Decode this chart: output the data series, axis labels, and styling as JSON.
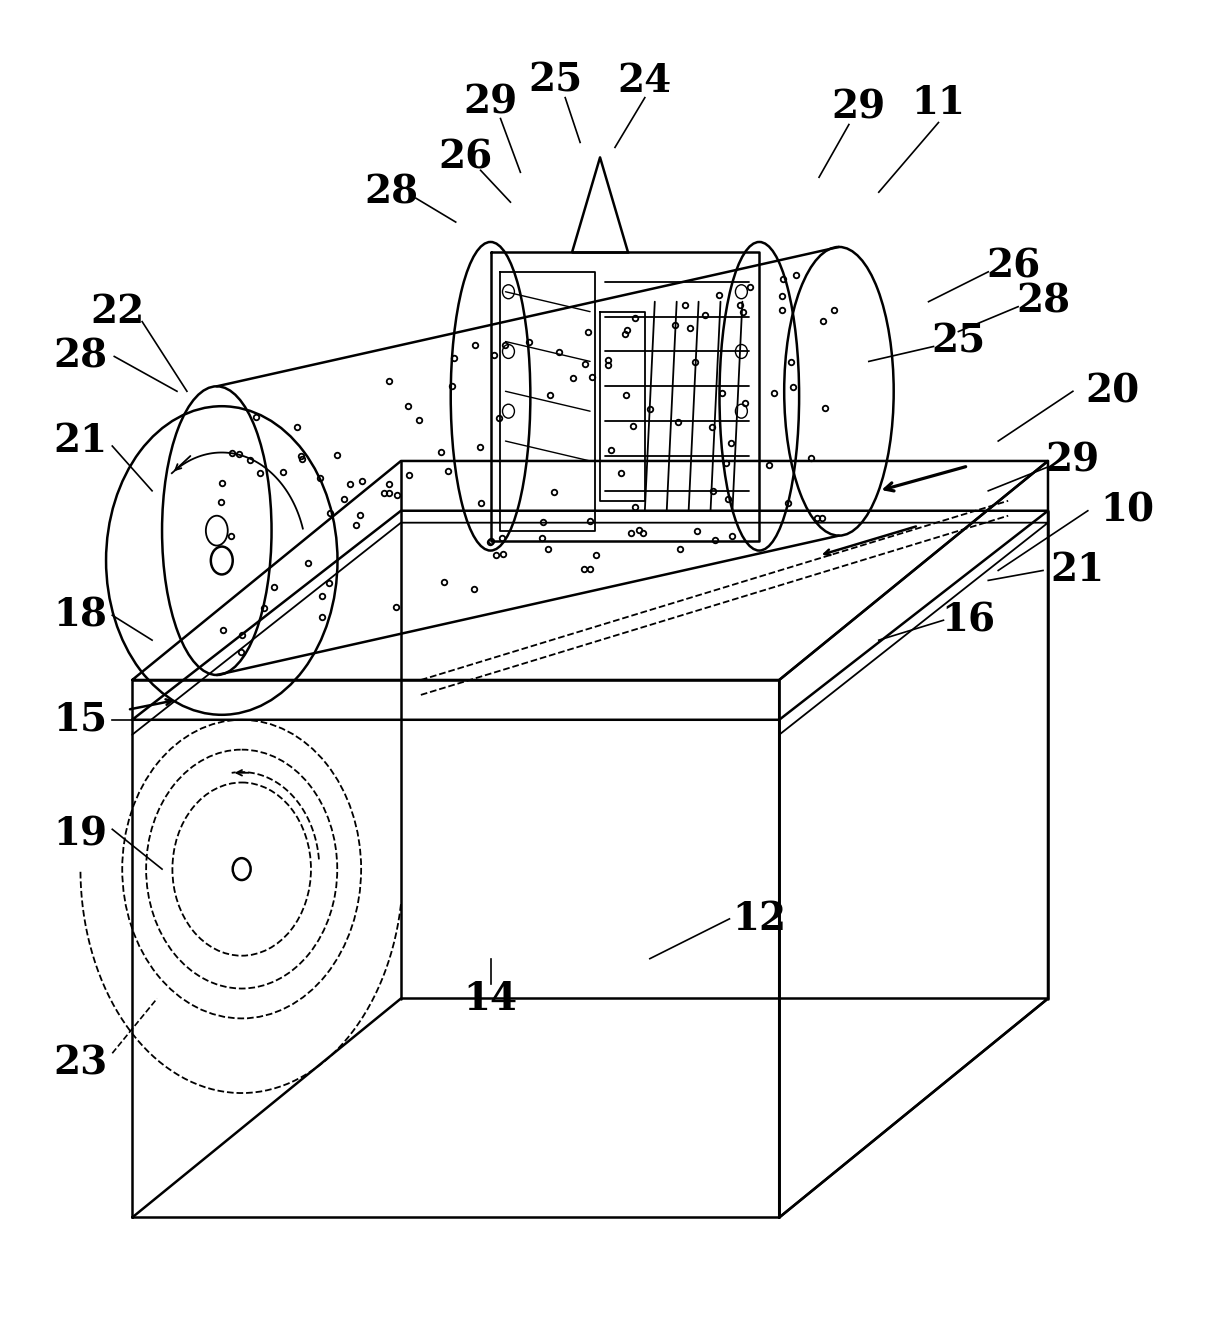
{
  "background_color": "#ffffff",
  "line_color": "#000000",
  "figure_width": 12.18,
  "figure_height": 13.43,
  "dpi": 100
}
